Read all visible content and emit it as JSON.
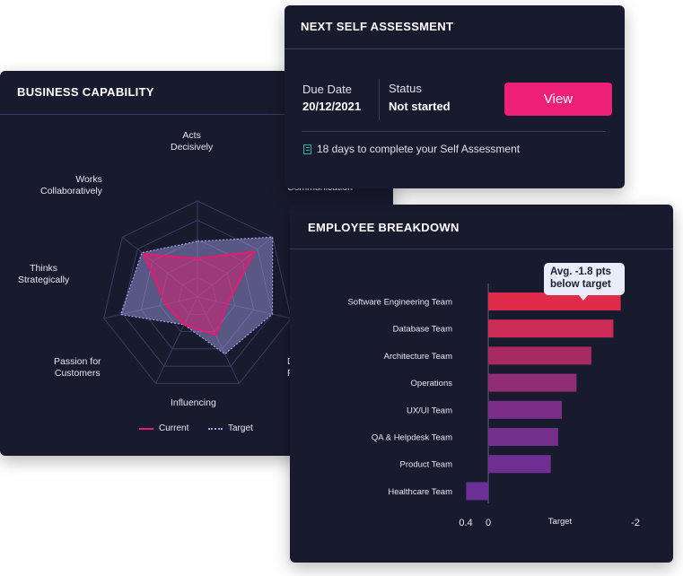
{
  "business_capability": {
    "title": "BUSINESS CAPABILITY",
    "axes": [
      "Acts Decisively",
      "Communication",
      "D",
      "Influencing",
      "Passion for Customers",
      "Thinks Strategically",
      "Works Collaboratively"
    ],
    "axis_label_lines": {
      "acts": [
        "Acts",
        "Decisively"
      ],
      "communication": "Communication",
      "d": [
        "D",
        "F"
      ],
      "influencing": "Influencing",
      "passion": [
        "Passion for",
        "Customers"
      ],
      "thinks": [
        "Thinks",
        "Strategically"
      ],
      "works": [
        "Works",
        "Collaboratively"
      ]
    },
    "legend": {
      "current": "Current",
      "target": "Target"
    },
    "colors": {
      "current": "#e8196e",
      "target": "#a9a1ea"
    },
    "scale_max": 5,
    "current_values": [
      2.0,
      3.8,
      1.6,
      2.2,
      1.6,
      1.7,
      3.6
    ],
    "target_values": [
      2.9,
      5.0,
      4.0,
      3.3,
      1.6,
      4.1,
      3.7
    ]
  },
  "next_self_assessment": {
    "title": "NEXT SELF ASSESSMENT",
    "due_label": "Due Date",
    "due_value": "20/12/2021",
    "status_label": "Status",
    "status_value": "Not started",
    "button_label": "View",
    "note_icon": "document-icon",
    "note": "18 days to complete your Self Assessment"
  },
  "employee_breakdown": {
    "title": "EMPLOYEE BREAKDOWN",
    "tooltip_line1": "Avg. -1.8 pts",
    "tooltip_line2": "below target",
    "chart_data": {
      "type": "bar",
      "orientation": "horizontal",
      "categories": [
        "Software Engineering Team",
        "Database Team",
        "Architecture Team",
        "Operations",
        "UX/UI Team",
        "QA & Helpdesk Team",
        "Product Team",
        "Healthcare Team"
      ],
      "values": [
        -1.8,
        -1.7,
        -1.4,
        -1.2,
        -1.0,
        -0.95,
        -0.85,
        0.3
      ],
      "xlim": [
        0.4,
        -2
      ],
      "tick_labels": [
        "0.4",
        "0",
        "Target",
        "-2"
      ],
      "colors": [
        "#e02a4a",
        "#cb2b55",
        "#a82a62",
        "#8f2c73",
        "#7a2e86",
        "#742f8d",
        "#6f2f92",
        "#6b2f95"
      ]
    }
  }
}
